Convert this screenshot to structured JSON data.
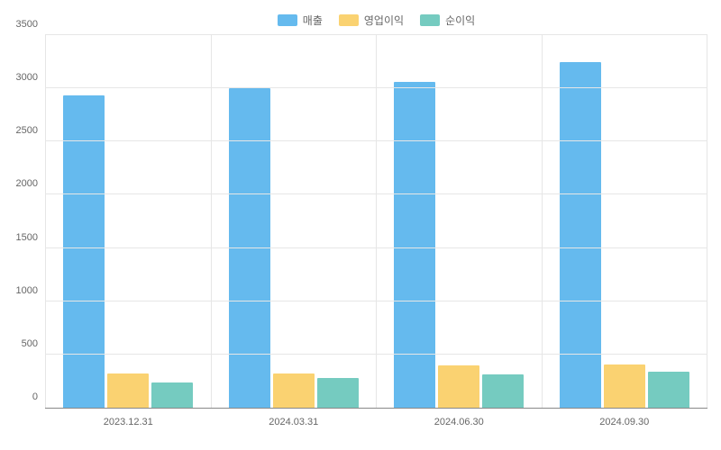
{
  "chart": {
    "type": "bar",
    "background_color": "#ffffff",
    "grid_color": "#e6e6e6",
    "axis_color": "#888888",
    "text_color": "#666666",
    "label_fontsize": 11,
    "legend_fontsize": 12,
    "ylim": [
      0,
      3500
    ],
    "ytick_step": 500,
    "yticks": [
      0,
      500,
      1000,
      1500,
      2000,
      2500,
      3000,
      3500
    ],
    "categories": [
      "2023.12.31",
      "2024.03.31",
      "2024.06.30",
      "2024.09.30"
    ],
    "series": [
      {
        "name": "매출",
        "color": "#65baee",
        "values": [
          2930,
          3000,
          3060,
          3250
        ]
      },
      {
        "name": "영업이익",
        "color": "#fad271",
        "values": [
          320,
          325,
          400,
          410
        ]
      },
      {
        "name": "순이익",
        "color": "#75cbc0",
        "values": [
          240,
          275,
          310,
          335
        ]
      }
    ]
  }
}
